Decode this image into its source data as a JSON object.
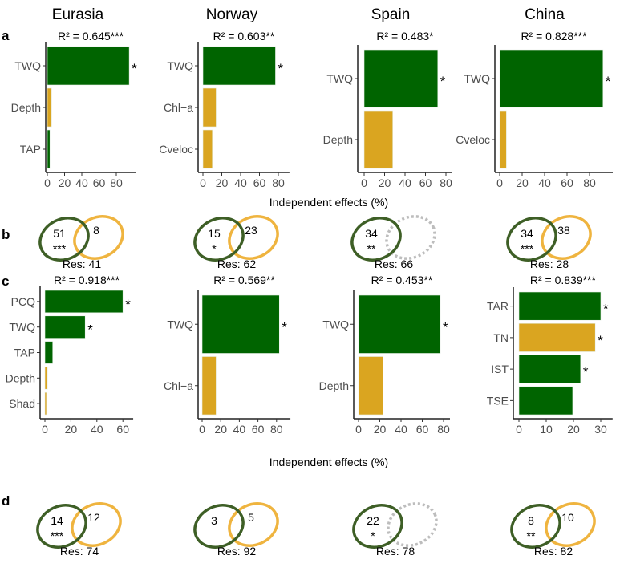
{
  "columns": [
    "Eurasia",
    "Norway",
    "Spain",
    "China"
  ],
  "panel_labels": {
    "a": "a",
    "b": "b",
    "c": "c",
    "d": "d"
  },
  "xlabel": "Independent effects (%)",
  "colors": {
    "climate": "#006400",
    "local": "#DAA520",
    "venn_climate": "#3e5f26",
    "venn_local": "#efb43f",
    "venn_empty": "#bdbdbd"
  },
  "chart_data": [
    {
      "panel": "a",
      "type": "bar",
      "orientation": "horizontal",
      "column": "Eurasia",
      "r2": "R² = 0.645***",
      "xticks": [
        0,
        20,
        40,
        60,
        80
      ],
      "xlim": [
        0,
        95
      ],
      "bars": [
        {
          "label": "TWQ",
          "value": 95,
          "group": "climate",
          "sig": "*"
        },
        {
          "label": "Depth",
          "value": 5,
          "group": "local",
          "sig": ""
        },
        {
          "label": "TAP",
          "value": 3,
          "group": "climate",
          "sig": ""
        }
      ]
    },
    {
      "panel": "a",
      "type": "bar",
      "orientation": "horizontal",
      "column": "Norway",
      "r2": "R² = 0.603**",
      "xticks": [
        0,
        20,
        40,
        60,
        80
      ],
      "xlim": [
        0,
        85
      ],
      "bars": [
        {
          "label": "TWQ",
          "value": 77,
          "group": "climate",
          "sig": "*"
        },
        {
          "label": "Chl−a",
          "value": 14,
          "group": "local",
          "sig": ""
        },
        {
          "label": "Cveloc",
          "value": 10,
          "group": "local",
          "sig": ""
        }
      ]
    },
    {
      "panel": "a",
      "type": "bar",
      "orientation": "horizontal",
      "column": "Spain",
      "r2": "R² = 0.483*",
      "xticks": [
        0,
        20,
        40,
        60,
        80
      ],
      "xlim": [
        0,
        80
      ],
      "bars": [
        {
          "label": "TWQ",
          "value": 72,
          "group": "climate",
          "sig": "*"
        },
        {
          "label": "Depth",
          "value": 28,
          "group": "local",
          "sig": ""
        }
      ]
    },
    {
      "panel": "a",
      "type": "bar",
      "orientation": "horizontal",
      "column": "China",
      "r2": "R² = 0.828***",
      "xticks": [
        0,
        20,
        40,
        60,
        80
      ],
      "xlim": [
        0,
        95
      ],
      "bars": [
        {
          "label": "TWQ",
          "value": 92,
          "group": "climate",
          "sig": "*"
        },
        {
          "label": "Cveloc",
          "value": 6,
          "group": "local",
          "sig": ""
        }
      ]
    },
    {
      "panel": "c",
      "type": "bar",
      "orientation": "horizontal",
      "column": "Eurasia",
      "r2": "R² = 0.918***",
      "xticks": [
        0,
        20,
        40,
        60
      ],
      "xlim": [
        0,
        63
      ],
      "bars": [
        {
          "label": "PCQ",
          "value": 60,
          "group": "climate",
          "sig": "*"
        },
        {
          "label": "TWQ",
          "value": 31,
          "group": "climate",
          "sig": "*"
        },
        {
          "label": "TAP",
          "value": 6,
          "group": "climate",
          "sig": ""
        },
        {
          "label": "Depth",
          "value": 2,
          "group": "local",
          "sig": ""
        },
        {
          "label": "Shad",
          "value": 1.2,
          "group": "local",
          "sig": ""
        }
      ]
    },
    {
      "panel": "c",
      "type": "bar",
      "orientation": "horizontal",
      "column": "Norway",
      "r2": "R² = 0.569**",
      "xticks": [
        0,
        20,
        40,
        60,
        80
      ],
      "xlim": [
        0,
        88
      ],
      "bars": [
        {
          "label": "TWQ",
          "value": 83,
          "group": "climate",
          "sig": "*"
        },
        {
          "label": "Chl−a",
          "value": 15,
          "group": "local",
          "sig": ""
        }
      ]
    },
    {
      "panel": "c",
      "type": "bar",
      "orientation": "horizontal",
      "column": "Spain",
      "r2": "R² = 0.453**",
      "xticks": [
        0,
        20,
        40,
        60,
        80
      ],
      "xlim": [
        0,
        80
      ],
      "bars": [
        {
          "label": "TWQ",
          "value": 77,
          "group": "climate",
          "sig": "*"
        },
        {
          "label": "Depth",
          "value": 23,
          "group": "local",
          "sig": ""
        }
      ]
    },
    {
      "panel": "c",
      "type": "bar",
      "orientation": "horizontal",
      "column": "China",
      "r2": "R² = 0.839***",
      "xticks": [
        0,
        10,
        20,
        30
      ],
      "xlim": [
        0,
        32
      ],
      "bars": [
        {
          "label": "TAR",
          "value": 30,
          "group": "climate",
          "sig": "*"
        },
        {
          "label": "TN",
          "value": 28,
          "group": "local",
          "sig": "*"
        },
        {
          "label": "IST",
          "value": 22.6,
          "group": "climate",
          "sig": "*"
        },
        {
          "label": "TSE",
          "value": 19.7,
          "group": "climate",
          "sig": ""
        }
      ]
    }
  ],
  "venns": [
    {
      "panel": "b",
      "column": "Eurasia",
      "climate": "51",
      "climate_sig": "***",
      "shared": "8",
      "local_present": true,
      "res": "Res: 41"
    },
    {
      "panel": "b",
      "column": "Norway",
      "climate": "15",
      "climate_sig": "*",
      "shared": "23",
      "local_present": true,
      "res": "Res: 62"
    },
    {
      "panel": "b",
      "column": "Spain",
      "climate": "34",
      "climate_sig": "**",
      "shared": "",
      "local_present": false,
      "res": "Res: 66"
    },
    {
      "panel": "b",
      "column": "China",
      "climate": "34",
      "climate_sig": "***",
      "shared": "38",
      "local_present": true,
      "res": "Res: 28"
    },
    {
      "panel": "d",
      "column": "Eurasia",
      "climate": "14",
      "climate_sig": "***",
      "shared": "12",
      "local_present": true,
      "res": "Res: 74"
    },
    {
      "panel": "d",
      "column": "Norway",
      "climate": "3",
      "climate_sig": "",
      "shared": "5",
      "local_present": true,
      "res": "Res: 92"
    },
    {
      "panel": "d",
      "column": "Spain",
      "climate": "22",
      "climate_sig": "*",
      "shared": "",
      "local_present": false,
      "res": "Res: 78"
    },
    {
      "panel": "d",
      "column": "China",
      "climate": "8",
      "climate_sig": "**",
      "shared": "10",
      "local_present": true,
      "res": "Res: 82"
    }
  ]
}
